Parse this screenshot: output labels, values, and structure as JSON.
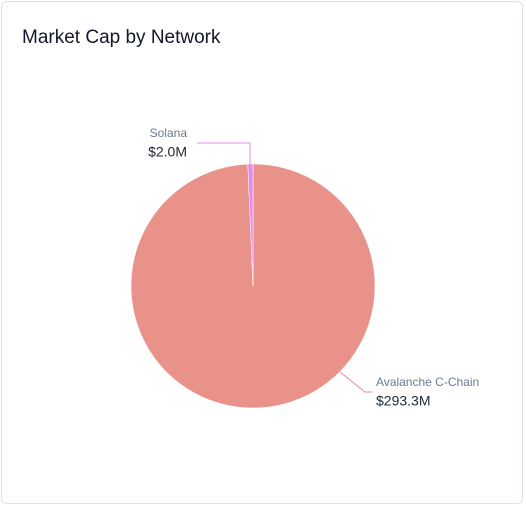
{
  "chart_data": {
    "type": "pie",
    "title": "Market Cap by Network",
    "categories": [
      "Avalanche C-Chain",
      "Solana"
    ],
    "values": [
      293.3,
      2.0
    ],
    "value_labels": [
      "$293.3M",
      "$2.0M"
    ],
    "colors": [
      "#e8928a",
      "#e48de6"
    ]
  }
}
